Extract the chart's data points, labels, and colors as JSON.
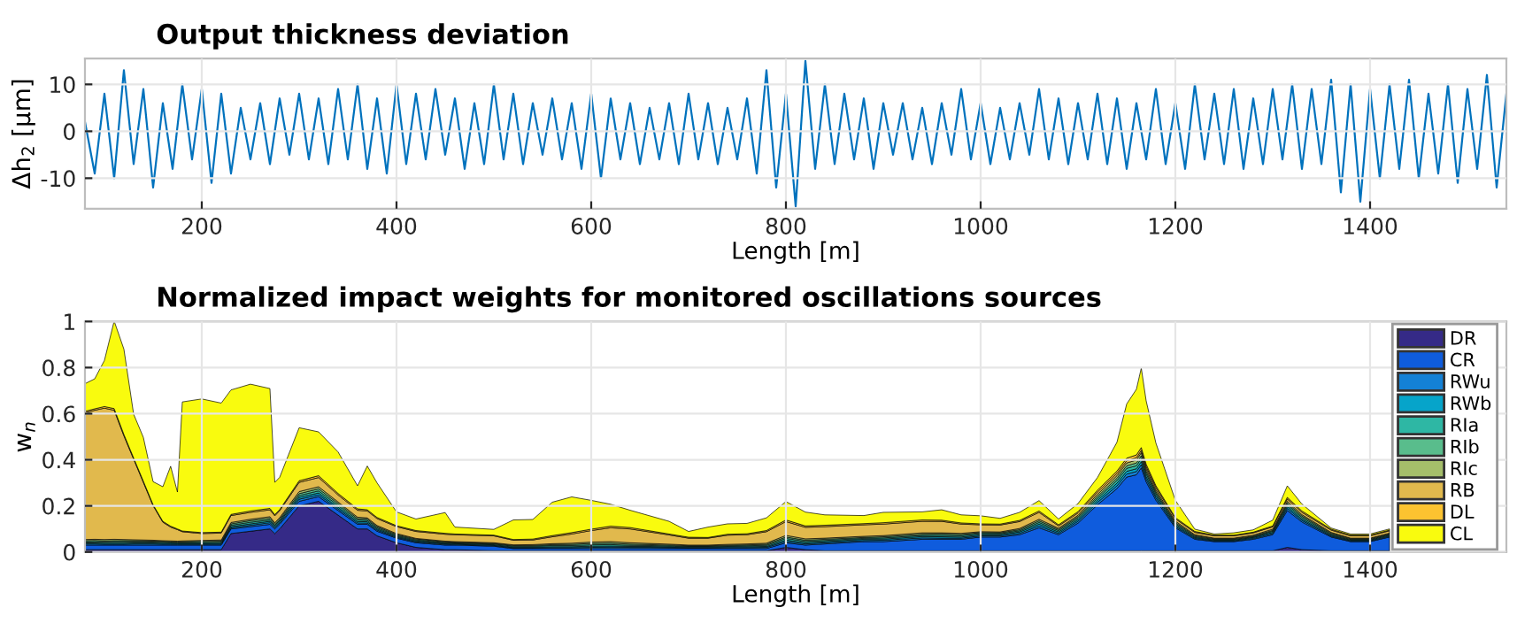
{
  "chart_data": [
    {
      "type": "line",
      "title": "Output thickness deviation",
      "xlabel": "Length [m]",
      "ylabel": "Δh$_{2}$ [μm]",
      "xlim": [
        80,
        1540
      ],
      "xticks": [
        200,
        400,
        600,
        800,
        1000,
        1200,
        1400
      ],
      "ylim": [
        -16.5,
        15.5
      ],
      "yticks": [
        -10,
        0,
        10
      ],
      "grid": true,
      "legend": false,
      "x": [
        80,
        90,
        100,
        110,
        120,
        130,
        140,
        150,
        160,
        170,
        180,
        190,
        200,
        210,
        220,
        230,
        240,
        250,
        260,
        270,
        280,
        290,
        300,
        310,
        320,
        330,
        340,
        350,
        360,
        370,
        380,
        390,
        400,
        410,
        420,
        430,
        440,
        450,
        460,
        470,
        480,
        490,
        500,
        510,
        520,
        530,
        540,
        550,
        560,
        570,
        580,
        590,
        600,
        610,
        620,
        630,
        640,
        650,
        660,
        670,
        680,
        690,
        700,
        710,
        720,
        730,
        740,
        750,
        760,
        770,
        780,
        790,
        800,
        810,
        820,
        830,
        840,
        850,
        860,
        870,
        880,
        890,
        900,
        910,
        920,
        930,
        940,
        950,
        960,
        970,
        980,
        990,
        1000,
        1010,
        1020,
        1030,
        1040,
        1050,
        1060,
        1070,
        1080,
        1090,
        1100,
        1110,
        1120,
        1130,
        1140,
        1150,
        1160,
        1170,
        1180,
        1190,
        1200,
        1210,
        1220,
        1230,
        1240,
        1250,
        1260,
        1270,
        1280,
        1290,
        1300,
        1310,
        1320,
        1330,
        1340,
        1350,
        1360,
        1370,
        1380,
        1390,
        1400,
        1410,
        1420,
        1430,
        1440,
        1450,
        1460,
        1470,
        1480,
        1490,
        1500,
        1510,
        1520,
        1530,
        1540
      ],
      "series": [
        {
          "color": "#0072bd",
          "values": [
            2,
            -9,
            8,
            -10,
            13,
            -7,
            9,
            -12,
            6,
            -8,
            10,
            -6,
            9,
            -11,
            8,
            -9,
            5,
            -6,
            6,
            -7,
            7,
            -5,
            8,
            -6,
            7,
            -7,
            9,
            -6,
            10,
            -8,
            7,
            -9,
            10,
            -7,
            8,
            -6,
            9,
            -5,
            7,
            -8,
            6,
            -7,
            10,
            -6,
            8,
            -7,
            6,
            -5,
            7,
            -6,
            6,
            -8,
            8,
            -10,
            7,
            -6,
            6,
            -7,
            5,
            -6,
            6,
            -7,
            8,
            -6,
            6,
            -7,
            5,
            -6,
            7,
            -9,
            13,
            -12,
            8,
            -16,
            15,
            -8,
            10,
            -7,
            8,
            -6,
            7,
            -8,
            6,
            -5,
            6,
            -6,
            5,
            -7,
            6,
            -5,
            9,
            -6,
            6,
            -7,
            5,
            -6,
            6,
            -5,
            9,
            -6,
            7,
            -7,
            6,
            -6,
            8,
            -7,
            7,
            -8,
            6,
            -6,
            9,
            -7,
            6,
            -8,
            10,
            -6,
            8,
            -7,
            9,
            -8,
            7,
            -7,
            9,
            -6,
            10,
            -8,
            9,
            -7,
            11,
            -13,
            10,
            -15,
            9,
            -10,
            10,
            -8,
            11,
            -10,
            8,
            -9,
            10,
            -11,
            9,
            -8,
            12,
            -12,
            8
          ]
        }
      ]
    },
    {
      "type": "area",
      "stacked": true,
      "title": "Normalized impact weights for monitored oscillations sources",
      "xlabel": "Length [m]",
      "ylabel": "w$_{n}$",
      "xlim": [
        80,
        1540
      ],
      "xticks": [
        200,
        400,
        600,
        800,
        1000,
        1200,
        1400
      ],
      "ylim": [
        0,
        1
      ],
      "yticks": [
        0,
        0.2,
        0.4,
        0.6,
        0.8,
        1
      ],
      "grid": true,
      "legend": "right",
      "x": [
        80,
        90,
        100,
        110,
        120,
        130,
        140,
        150,
        160,
        168,
        175,
        180,
        200,
        220,
        230,
        250,
        270,
        275,
        280,
        300,
        320,
        340,
        360,
        370,
        380,
        400,
        420,
        450,
        460,
        500,
        520,
        540,
        560,
        580,
        600,
        620,
        640,
        660,
        680,
        700,
        720,
        740,
        760,
        780,
        800,
        820,
        840,
        880,
        900,
        940,
        960,
        980,
        1000,
        1020,
        1040,
        1060,
        1080,
        1100,
        1120,
        1140,
        1150,
        1160,
        1165,
        1170,
        1180,
        1200,
        1220,
        1240,
        1260,
        1280,
        1300,
        1315,
        1330,
        1360,
        1380,
        1400,
        1420
      ],
      "series": [
        {
          "name": "DR",
          "color": "#352a87",
          "values": [
            0.01,
            0.01,
            0.01,
            0.01,
            0.01,
            0.01,
            0.01,
            0.01,
            0.01,
            0.01,
            0.01,
            0.01,
            0.01,
            0.01,
            0.08,
            0.09,
            0.1,
            0.08,
            0.1,
            0.2,
            0.22,
            0.16,
            0.1,
            0.1,
            0.07,
            0.04,
            0.02,
            0.01,
            0.01,
            0.005,
            0.005,
            0.005,
            0.005,
            0.005,
            0.005,
            0.005,
            0.005,
            0.005,
            0.005,
            0.005,
            0.005,
            0.005,
            0.005,
            0.005,
            0.02,
            0.01,
            0.005,
            0.005,
            0.005,
            0.005,
            0.005,
            0.005,
            0.005,
            0.005,
            0.005,
            0.005,
            0.005,
            0.005,
            0.005,
            0.005,
            0.005,
            0.005,
            0.005,
            0.005,
            0.005,
            0.005,
            0.005,
            0.005,
            0.005,
            0.005,
            0.005,
            0.02,
            0.01,
            0.005,
            0.005,
            0.005,
            0.005
          ]
        },
        {
          "name": "CR",
          "color": "#0f5cdd",
          "values": [
            0.02,
            0.02,
            0.02,
            0.02,
            0.02,
            0.02,
            0.02,
            0.02,
            0.02,
            0.02,
            0.02,
            0.02,
            0.02,
            0.02,
            0.02,
            0.02,
            0.02,
            0.02,
            0.02,
            0.02,
            0.02,
            0.02,
            0.02,
            0.02,
            0.02,
            0.02,
            0.02,
            0.02,
            0.02,
            0.02,
            0.01,
            0.01,
            0.01,
            0.01,
            0.01,
            0.01,
            0.01,
            0.01,
            0.01,
            0.01,
            0.01,
            0.01,
            0.01,
            0.01,
            0.02,
            0.02,
            0.03,
            0.04,
            0.04,
            0.05,
            0.05,
            0.05,
            0.06,
            0.06,
            0.07,
            0.1,
            0.07,
            0.12,
            0.2,
            0.27,
            0.32,
            0.33,
            0.36,
            0.3,
            0.22,
            0.1,
            0.05,
            0.04,
            0.04,
            0.05,
            0.07,
            0.16,
            0.12,
            0.06,
            0.04,
            0.04,
            0.06
          ]
        },
        {
          "name": "RWu",
          "color": "#1481d6",
          "values": [
            0.005,
            0.005,
            0.004,
            0.004,
            0.004,
            0.005,
            0.005,
            0.005,
            0.004,
            0.004,
            0.003,
            0.003,
            0.003,
            0.004,
            0.005,
            0.006,
            0.007,
            0.006,
            0.006,
            0.009,
            0.008,
            0.007,
            0.006,
            0.005,
            0.005,
            0.004,
            0.004,
            0.004,
            0.003,
            0.003,
            0.003,
            0.003,
            0.004,
            0.004,
            0.005,
            0.006,
            0.005,
            0.005,
            0.004,
            0.003,
            0.003,
            0.004,
            0.004,
            0.005,
            0.006,
            0.005,
            0.005,
            0.005,
            0.006,
            0.006,
            0.005,
            0.005,
            0.005,
            0.005,
            0.006,
            0.008,
            0.006,
            0.008,
            0.01,
            0.012,
            0.013,
            0.014,
            0.014,
            0.012,
            0.01,
            0.006,
            0.004,
            0.003,
            0.003,
            0.004,
            0.005,
            0.009,
            0.007,
            0.004,
            0.003,
            0.003,
            0.004
          ]
        },
        {
          "name": "RWb",
          "color": "#06a4ca",
          "values": [
            0.004,
            0.004,
            0.004,
            0.004,
            0.004,
            0.004,
            0.004,
            0.004,
            0.004,
            0.004,
            0.004,
            0.004,
            0.004,
            0.004,
            0.005,
            0.006,
            0.006,
            0.005,
            0.006,
            0.008,
            0.008,
            0.007,
            0.006,
            0.006,
            0.005,
            0.004,
            0.004,
            0.003,
            0.003,
            0.003,
            0.003,
            0.003,
            0.004,
            0.004,
            0.005,
            0.005,
            0.004,
            0.004,
            0.003,
            0.003,
            0.003,
            0.004,
            0.004,
            0.004,
            0.006,
            0.005,
            0.005,
            0.005,
            0.005,
            0.006,
            0.006,
            0.005,
            0.005,
            0.005,
            0.006,
            0.008,
            0.006,
            0.007,
            0.009,
            0.011,
            0.012,
            0.012,
            0.013,
            0.011,
            0.009,
            0.006,
            0.004,
            0.003,
            0.003,
            0.004,
            0.005,
            0.008,
            0.006,
            0.004,
            0.003,
            0.003,
            0.004
          ]
        },
        {
          "name": "RIa",
          "color": "#2eb7a4",
          "values": [
            0.004,
            0.005,
            0.005,
            0.006,
            0.006,
            0.005,
            0.005,
            0.004,
            0.004,
            0.003,
            0.003,
            0.003,
            0.004,
            0.004,
            0.006,
            0.007,
            0.006,
            0.005,
            0.005,
            0.008,
            0.009,
            0.008,
            0.007,
            0.006,
            0.005,
            0.004,
            0.004,
            0.003,
            0.003,
            0.003,
            0.004,
            0.004,
            0.005,
            0.005,
            0.006,
            0.006,
            0.005,
            0.004,
            0.004,
            0.003,
            0.003,
            0.003,
            0.004,
            0.005,
            0.007,
            0.006,
            0.005,
            0.004,
            0.005,
            0.005,
            0.006,
            0.006,
            0.005,
            0.004,
            0.005,
            0.007,
            0.006,
            0.007,
            0.009,
            0.012,
            0.013,
            0.013,
            0.014,
            0.012,
            0.009,
            0.006,
            0.004,
            0.003,
            0.003,
            0.003,
            0.005,
            0.008,
            0.007,
            0.004,
            0.003,
            0.003,
            0.003
          ]
        },
        {
          "name": "RIb",
          "color": "#59bd8c",
          "values": [
            0.006,
            0.006,
            0.005,
            0.005,
            0.005,
            0.004,
            0.004,
            0.004,
            0.004,
            0.004,
            0.004,
            0.004,
            0.005,
            0.005,
            0.006,
            0.007,
            0.007,
            0.006,
            0.006,
            0.008,
            0.009,
            0.008,
            0.006,
            0.006,
            0.005,
            0.004,
            0.004,
            0.004,
            0.003,
            0.003,
            0.003,
            0.003,
            0.004,
            0.005,
            0.006,
            0.006,
            0.005,
            0.004,
            0.004,
            0.003,
            0.003,
            0.003,
            0.004,
            0.004,
            0.006,
            0.005,
            0.005,
            0.004,
            0.005,
            0.005,
            0.006,
            0.005,
            0.004,
            0.004,
            0.005,
            0.007,
            0.005,
            0.006,
            0.008,
            0.01,
            0.011,
            0.012,
            0.012,
            0.01,
            0.008,
            0.005,
            0.004,
            0.003,
            0.003,
            0.003,
            0.004,
            0.007,
            0.006,
            0.004,
            0.003,
            0.003,
            0.003
          ]
        },
        {
          "name": "RIc",
          "color": "#a5be6a",
          "values": [
            0.005,
            0.005,
            0.006,
            0.006,
            0.005,
            0.005,
            0.004,
            0.004,
            0.003,
            0.003,
            0.003,
            0.004,
            0.004,
            0.005,
            0.006,
            0.006,
            0.007,
            0.005,
            0.006,
            0.009,
            0.009,
            0.007,
            0.006,
            0.005,
            0.005,
            0.004,
            0.003,
            0.003,
            0.003,
            0.003,
            0.003,
            0.004,
            0.004,
            0.005,
            0.006,
            0.007,
            0.006,
            0.005,
            0.004,
            0.003,
            0.003,
            0.004,
            0.004,
            0.005,
            0.007,
            0.006,
            0.005,
            0.005,
            0.005,
            0.006,
            0.005,
            0.005,
            0.004,
            0.004,
            0.005,
            0.007,
            0.005,
            0.006,
            0.009,
            0.011,
            0.012,
            0.013,
            0.013,
            0.011,
            0.009,
            0.006,
            0.004,
            0.003,
            0.003,
            0.004,
            0.005,
            0.008,
            0.006,
            0.004,
            0.003,
            0.003,
            0.003
          ]
        },
        {
          "name": "RB",
          "color": "#e1b94d",
          "values": [
            0.55,
            0.56,
            0.57,
            0.56,
            0.45,
            0.35,
            0.25,
            0.15,
            0.08,
            0.06,
            0.05,
            0.04,
            0.03,
            0.03,
            0.03,
            0.03,
            0.03,
            0.03,
            0.03,
            0.04,
            0.04,
            0.03,
            0.03,
            0.03,
            0.03,
            0.03,
            0.03,
            0.03,
            0.03,
            0.03,
            0.02,
            0.02,
            0.03,
            0.04,
            0.05,
            0.06,
            0.06,
            0.05,
            0.04,
            0.03,
            0.03,
            0.04,
            0.04,
            0.05,
            0.06,
            0.05,
            0.05,
            0.05,
            0.05,
            0.05,
            0.05,
            0.04,
            0.03,
            0.03,
            0.03,
            0.03,
            0.01,
            0.01,
            0.01,
            0.01,
            0.01,
            0.01,
            0.01,
            0.01,
            0.01,
            0.01,
            0.01,
            0.01,
            0.01,
            0.01,
            0.01,
            0.01,
            0.01,
            0.01,
            0.01,
            0.01,
            0.01
          ]
        },
        {
          "name": "DL",
          "color": "#fcc330",
          "values": [
            0.006,
            0.006,
            0.007,
            0.007,
            0.006,
            0.005,
            0.005,
            0.004,
            0.004,
            0.004,
            0.003,
            0.003,
            0.004,
            0.004,
            0.005,
            0.006,
            0.006,
            0.005,
            0.005,
            0.007,
            0.008,
            0.007,
            0.006,
            0.005,
            0.005,
            0.004,
            0.004,
            0.004,
            0.003,
            0.003,
            0.003,
            0.004,
            0.005,
            0.006,
            0.006,
            0.007,
            0.006,
            0.005,
            0.004,
            0.004,
            0.003,
            0.004,
            0.004,
            0.005,
            0.007,
            0.006,
            0.006,
            0.005,
            0.006,
            0.006,
            0.005,
            0.005,
            0.004,
            0.004,
            0.005,
            0.006,
            0.005,
            0.006,
            0.008,
            0.01,
            0.011,
            0.012,
            0.012,
            0.01,
            0.008,
            0.005,
            0.004,
            0.003,
            0.003,
            0.003,
            0.004,
            0.007,
            0.006,
            0.004,
            0.003,
            0.003,
            0.003
          ]
        },
        {
          "name": "CL",
          "color": "#f9fb0e",
          "values": [
            0.12,
            0.13,
            0.2,
            0.38,
            0.37,
            0.19,
            0.19,
            0.1,
            0.15,
            0.26,
            0.16,
            0.56,
            0.58,
            0.56,
            0.54,
            0.55,
            0.52,
            0.14,
            0.14,
            0.23,
            0.19,
            0.18,
            0.1,
            0.19,
            0.15,
            0.06,
            0.05,
            0.09,
            0.03,
            0.025,
            0.085,
            0.085,
            0.145,
            0.155,
            0.125,
            0.095,
            0.075,
            0.065,
            0.055,
            0.025,
            0.045,
            0.045,
            0.045,
            0.055,
            0.08,
            0.06,
            0.045,
            0.035,
            0.045,
            0.035,
            0.045,
            0.035,
            0.035,
            0.025,
            0.035,
            0.045,
            0.025,
            0.035,
            0.055,
            0.125,
            0.235,
            0.285,
            0.345,
            0.275,
            0.185,
            0.075,
            0.01,
            0.005,
            0.01,
            0.01,
            0.025,
            0.05,
            0.03,
            0.005,
            0.005,
            0.005,
            0.005
          ]
        }
      ]
    }
  ]
}
